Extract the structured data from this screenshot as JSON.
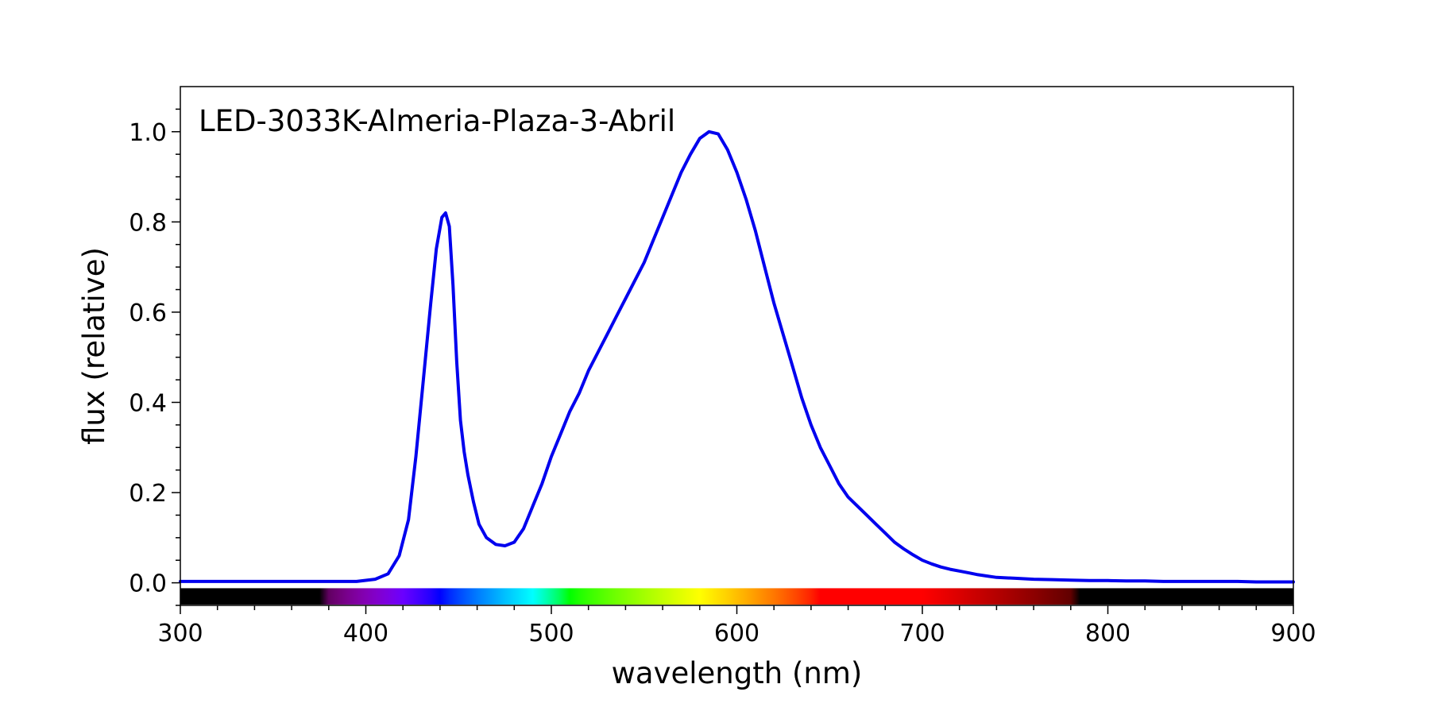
{
  "chart_data": {
    "type": "line",
    "annotation": "LED-3033K-Almeria-Plaza-3-Abril",
    "xlabel": "wavelength (nm)",
    "ylabel": "flux (relative)",
    "xlim": [
      300,
      900
    ],
    "ylim": [
      -0.05,
      1.1
    ],
    "x_ticks": [
      300,
      400,
      500,
      600,
      700,
      800,
      900
    ],
    "x_tick_labels": [
      "300",
      "400",
      "500",
      "600",
      "700",
      "800",
      "900"
    ],
    "y_ticks": [
      0.0,
      0.2,
      0.4,
      0.6,
      0.8,
      1.0
    ],
    "y_tick_labels": [
      "0.0",
      "0.2",
      "0.4",
      "0.6",
      "0.8",
      "1.0"
    ],
    "grid": false,
    "spectrum_bar": true,
    "series": [
      {
        "color": "#0000ee",
        "x": [
          300,
          320,
          340,
          360,
          380,
          395,
          405,
          412,
          418,
          423,
          427,
          431,
          435,
          438,
          441,
          443,
          445,
          447,
          449,
          451,
          453,
          455,
          458,
          461,
          465,
          470,
          475,
          480,
          485,
          490,
          495,
          500,
          505,
          510,
          515,
          520,
          525,
          530,
          535,
          540,
          545,
          550,
          555,
          560,
          565,
          570,
          575,
          580,
          585,
          590,
          595,
          600,
          605,
          610,
          615,
          620,
          625,
          630,
          635,
          640,
          645,
          650,
          655,
          660,
          665,
          670,
          675,
          680,
          685,
          690,
          695,
          700,
          705,
          710,
          715,
          720,
          725,
          730,
          735,
          740,
          750,
          760,
          770,
          780,
          790,
          800,
          810,
          820,
          830,
          840,
          850,
          860,
          870,
          880,
          890,
          900
        ],
        "y": [
          0.003,
          0.003,
          0.003,
          0.003,
          0.003,
          0.003,
          0.008,
          0.02,
          0.06,
          0.14,
          0.28,
          0.45,
          0.62,
          0.74,
          0.81,
          0.82,
          0.79,
          0.66,
          0.49,
          0.36,
          0.29,
          0.24,
          0.18,
          0.13,
          0.1,
          0.085,
          0.082,
          0.09,
          0.12,
          0.17,
          0.22,
          0.28,
          0.33,
          0.38,
          0.42,
          0.47,
          0.51,
          0.55,
          0.59,
          0.63,
          0.67,
          0.71,
          0.76,
          0.81,
          0.86,
          0.91,
          0.95,
          0.985,
          1.0,
          0.995,
          0.96,
          0.91,
          0.85,
          0.78,
          0.7,
          0.62,
          0.55,
          0.48,
          0.41,
          0.35,
          0.3,
          0.26,
          0.22,
          0.19,
          0.17,
          0.15,
          0.13,
          0.11,
          0.09,
          0.075,
          0.062,
          0.05,
          0.042,
          0.035,
          0.03,
          0.026,
          0.022,
          0.018,
          0.015,
          0.012,
          0.01,
          0.008,
          0.007,
          0.006,
          0.005,
          0.005,
          0.004,
          0.004,
          0.003,
          0.003,
          0.003,
          0.003,
          0.003,
          0.002,
          0.002,
          0.002
        ]
      }
    ]
  }
}
